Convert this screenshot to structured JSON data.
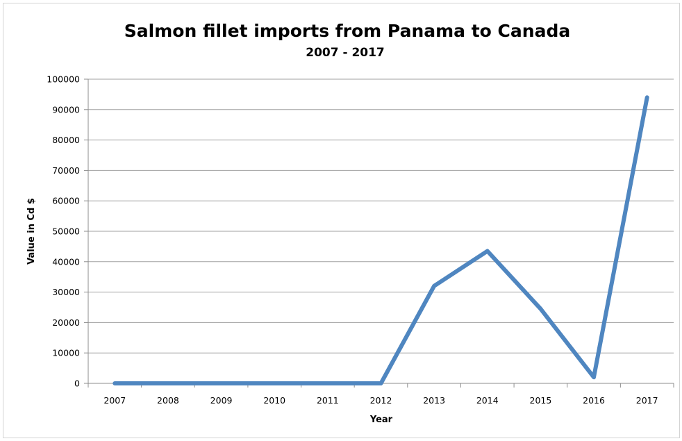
{
  "chart_data": {
    "type": "line",
    "title": "Salmon fillet imports from Panama to Canada",
    "subtitle": "2007 - 2017",
    "xlabel": "Year",
    "ylabel": "Value in Cd $",
    "categories": [
      "2007",
      "2008",
      "2009",
      "2010",
      "2011",
      "2012",
      "2013",
      "2014",
      "2015",
      "2016",
      "2017"
    ],
    "series": [
      {
        "values": [
          0,
          0,
          0,
          0,
          0,
          0,
          32000,
          43500,
          24500,
          2000,
          94000
        ]
      }
    ],
    "ylim": [
      0,
      100000
    ],
    "yticks": [
      "0",
      "10000",
      "20000",
      "30000",
      "40000",
      "50000",
      "60000",
      "70000",
      "80000",
      "90000",
      "100000"
    ],
    "grid": true,
    "legend": "none",
    "colors": {
      "series": "#4f86c0",
      "grid": "#a0a0a0"
    }
  }
}
